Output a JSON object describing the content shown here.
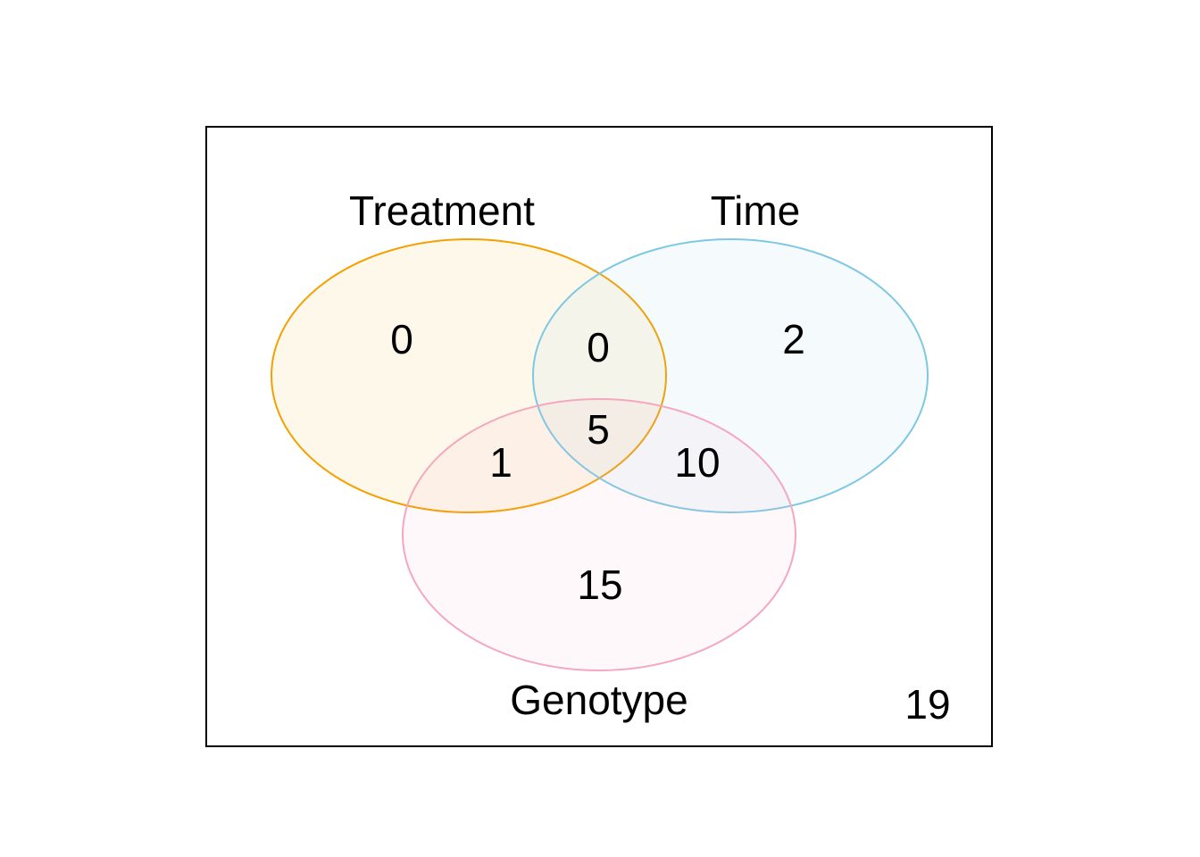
{
  "sets": [
    {
      "name": "Treatment",
      "fill": "#F5A000",
      "stroke": "#F5A000"
    },
    {
      "name": "Time",
      "fill": "#7EC8E3",
      "stroke": "#7EC8E3"
    },
    {
      "name": "Genotype",
      "fill": "#F4A7BD",
      "stroke": "#F4A7BD"
    }
  ],
  "regions": {
    "treatment_only": "0",
    "treatment_time": "0",
    "time_only": "2",
    "all_three": "5",
    "treatment_genotype": "1",
    "time_genotype": "10",
    "genotype_only": "15",
    "outside": "19"
  }
}
